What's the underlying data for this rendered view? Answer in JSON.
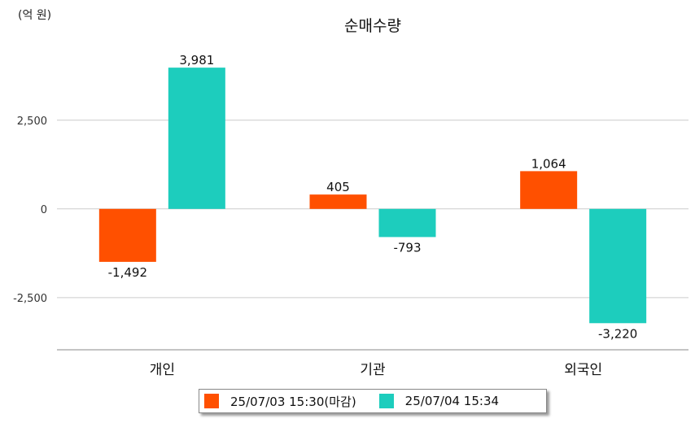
{
  "chart_data": {
    "type": "bar",
    "title": "순매수량",
    "unit_label": "(억 원)",
    "categories": [
      "개인",
      "기관",
      "외국인"
    ],
    "series": [
      {
        "name": "25/07/03 15:30(마감)",
        "color": "#FF5000",
        "values": [
          -1492,
          405,
          1064
        ],
        "labels": [
          "-1,492",
          "405",
          "1,064"
        ]
      },
      {
        "name": "25/07/04 15:34",
        "color": "#1DCDBD",
        "values": [
          3981,
          -793,
          -3220
        ],
        "labels": [
          "3,981",
          "-793",
          "-3,220"
        ]
      }
    ],
    "yticks": [
      2500,
      0,
      -2500
    ],
    "ytick_labels": [
      "2,500",
      "0",
      "-2,500"
    ],
    "ylim": [
      -3970,
      4970
    ],
    "grid": true,
    "legend_position": "bottom"
  }
}
